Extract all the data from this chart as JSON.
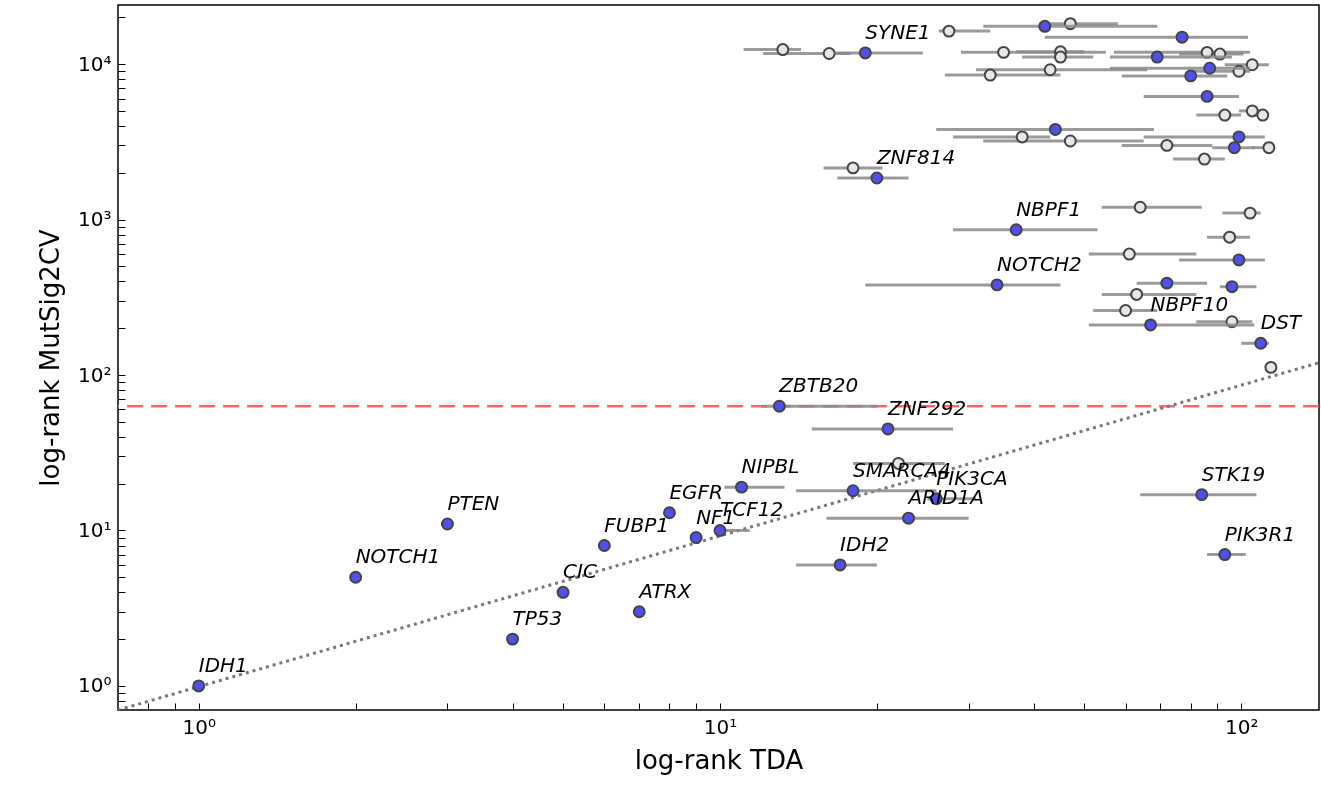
{
  "chart_data": {
    "type": "scatter",
    "xlabel": "log-rank TDA",
    "ylabel": "log-rank MutSig2CV",
    "log": "xy",
    "grid": false,
    "marker": "circle",
    "xlim": [
      0.7,
      141
    ],
    "ylim": [
      0.7,
      24000
    ],
    "xticks": [
      {
        "value": 0.8,
        "label": null
      },
      {
        "value": 0.9,
        "label": null
      },
      {
        "value": 1,
        "label": "10⁰"
      },
      {
        "value": 2,
        "label": null
      },
      {
        "value": 3,
        "label": null
      },
      {
        "value": 4,
        "label": null
      },
      {
        "value": 5,
        "label": null
      },
      {
        "value": 6,
        "label": null
      },
      {
        "value": 7,
        "label": null
      },
      {
        "value": 8,
        "label": null
      },
      {
        "value": 9,
        "label": null
      },
      {
        "value": 10,
        "label": "10¹"
      },
      {
        "value": 20,
        "label": null
      },
      {
        "value": 30,
        "label": null
      },
      {
        "value": 40,
        "label": null
      },
      {
        "value": 50,
        "label": null
      },
      {
        "value": 60,
        "label": null
      },
      {
        "value": 70,
        "label": null
      },
      {
        "value": 80,
        "label": null
      },
      {
        "value": 90,
        "label": null
      },
      {
        "value": 100,
        "label": "10²"
      }
    ],
    "yticks": [
      {
        "value": 0.8,
        "label": null
      },
      {
        "value": 0.9,
        "label": null
      },
      {
        "value": 1,
        "label": "10⁰"
      },
      {
        "value": 2,
        "label": null
      },
      {
        "value": 3,
        "label": null
      },
      {
        "value": 4,
        "label": null
      },
      {
        "value": 5,
        "label": null
      },
      {
        "value": 6,
        "label": null
      },
      {
        "value": 7,
        "label": null
      },
      {
        "value": 8,
        "label": null
      },
      {
        "value": 9,
        "label": null
      },
      {
        "value": 10,
        "label": "10¹"
      },
      {
        "value": 20,
        "label": null
      },
      {
        "value": 30,
        "label": null
      },
      {
        "value": 40,
        "label": null
      },
      {
        "value": 50,
        "label": null
      },
      {
        "value": 60,
        "label": null
      },
      {
        "value": 70,
        "label": null
      },
      {
        "value": 80,
        "label": null
      },
      {
        "value": 90,
        "label": null
      },
      {
        "value": 100,
        "label": "10²"
      },
      {
        "value": 200,
        "label": null
      },
      {
        "value": 300,
        "label": null
      },
      {
        "value": 400,
        "label": null
      },
      {
        "value": 500,
        "label": null
      },
      {
        "value": 600,
        "label": null
      },
      {
        "value": 700,
        "label": null
      },
      {
        "value": 800,
        "label": null
      },
      {
        "value": 900,
        "label": null
      },
      {
        "value": 1000,
        "label": "10³"
      },
      {
        "value": 2000,
        "label": null
      },
      {
        "value": 3000,
        "label": null
      },
      {
        "value": 4000,
        "label": null
      },
      {
        "value": 5000,
        "label": null
      },
      {
        "value": 6000,
        "label": null
      },
      {
        "value": 7000,
        "label": null
      },
      {
        "value": 8000,
        "label": null
      },
      {
        "value": 9000,
        "label": null
      },
      {
        "value": 10000,
        "label": "10⁴"
      },
      {
        "value": 20000,
        "label": null
      }
    ],
    "ref_lines": [
      {
        "axis": "y",
        "value": 63,
        "color": "#ff6666",
        "line_style": "dashed"
      }
    ],
    "series": [
      {
        "type": "line",
        "color": "#777777",
        "line_style": "dotted",
        "marker": "none",
        "x": [
          0.7,
          141
        ],
        "values": [
          0.7,
          120
        ]
      },
      {
        "type": "scatter",
        "color": "#e6e6e6",
        "x": [
          13.2,
          16.2,
          27.5,
          47,
          35,
          45,
          45,
          86,
          91,
          105,
          99,
          43,
          33,
          93,
          105,
          110,
          38,
          47,
          72,
          113,
          85,
          18,
          64,
          104,
          95,
          61,
          63,
          60,
          96,
          114,
          22
        ],
        "values": [
          12400,
          11700,
          16300,
          18200,
          11900,
          12000,
          11100,
          11900,
          11600,
          9900,
          9000,
          9200,
          8500,
          4700,
          5000,
          4700,
          3400,
          3200,
          3000,
          2900,
          2450,
          2150,
          1200,
          1100,
          770,
          600,
          330,
          260,
          220,
          112,
          27
        ],
        "xerrors": [
          [
            11.1,
            14.3
          ],
          [
            12.1,
            17.8
          ],
          [
            26.3,
            33
          ],
          [
            41,
            58
          ],
          [
            29,
            55
          ],
          [
            37,
            50
          ],
          [
            38,
            52
          ],
          [
            57,
            104
          ],
          [
            76,
            101
          ],
          [
            93,
            113
          ],
          [
            79,
            104
          ],
          [
            31,
            66
          ],
          [
            27,
            45
          ],
          [
            82,
            100
          ],
          [
            99,
            111
          ],
          [
            105,
            113
          ],
          [
            28,
            43
          ],
          [
            32,
            65
          ],
          [
            59,
            88
          ],
          [
            105,
            116
          ],
          [
            74,
            93
          ],
          [
            15.8,
            20.5
          ],
          [
            54,
            84
          ],
          [
            92,
            109
          ],
          [
            86,
            104
          ],
          [
            51,
            82
          ],
          [
            54,
            82
          ],
          [
            52,
            69
          ],
          [
            82,
            105
          ],
          null,
          [
            18,
            27
          ]
        ]
      },
      {
        "type": "scatter",
        "color": "#5050f0",
        "x": [
          19,
          42,
          77,
          69,
          87,
          80,
          86,
          44,
          99,
          97,
          20,
          37,
          99,
          34,
          72,
          96,
          67,
          109,
          13,
          21,
          18,
          26,
          23,
          84,
          93,
          17,
          11,
          10,
          9,
          8,
          6,
          7,
          5,
          4,
          3,
          2,
          1
        ],
        "values": [
          11800,
          17500,
          14900,
          11100,
          9400,
          8400,
          6200,
          3800,
          3400,
          2900,
          1850,
          860,
          550,
          380,
          390,
          370,
          210,
          160,
          63,
          45,
          18,
          16,
          12,
          17,
          7,
          6,
          19,
          10,
          9,
          13,
          8,
          3,
          4,
          2,
          11,
          5,
          1
        ],
        "xerrors": [
          [
            16.6,
            24.5
          ],
          [
            32,
            69
          ],
          [
            42,
            103
          ],
          [
            56,
            96
          ],
          [
            56,
            104
          ],
          [
            59,
            94
          ],
          [
            65,
            99
          ],
          [
            26,
            68
          ],
          [
            65,
            111
          ],
          [
            88,
            106
          ],
          [
            16.8,
            23
          ],
          [
            28,
            53
          ],
          [
            76,
            111
          ],
          [
            19,
            45
          ],
          [
            63,
            86
          ],
          [
            91,
            107
          ],
          [
            51,
            106
          ],
          [
            100,
            113
          ],
          [
            12,
            20
          ],
          [
            15,
            28
          ],
          [
            14,
            26
          ],
          [
            25,
            31
          ],
          [
            16,
            30
          ],
          [
            64,
            107
          ],
          [
            86,
            102
          ],
          [
            14,
            20
          ],
          [
            10.2,
            13.3
          ],
          [
            10,
            11.4
          ],
          null,
          null,
          null,
          null,
          null,
          null,
          null,
          null,
          null
        ]
      }
    ],
    "annotations": [
      {
        "text": "SYNE1",
        "x": 19,
        "y": 11800
      },
      {
        "text": "ZNF814",
        "x": 20,
        "y": 1850
      },
      {
        "text": "NBPF1",
        "x": 37,
        "y": 860
      },
      {
        "text": "NOTCH2",
        "x": 34,
        "y": 380
      },
      {
        "text": "NBPF10",
        "x": 67,
        "y": 210
      },
      {
        "text": "DST",
        "x": 109,
        "y": 160
      },
      {
        "text": "ZBTB20",
        "x": 13,
        "y": 63
      },
      {
        "text": "ZNF292",
        "x": 21,
        "y": 45
      },
      {
        "text": "SMARCA4",
        "x": 18,
        "y": 18
      },
      {
        "text": "PIK3CA",
        "x": 26,
        "y": 16
      },
      {
        "text": "ARID1A",
        "x": 23,
        "y": 12
      },
      {
        "text": "STK19",
        "x": 84,
        "y": 17
      },
      {
        "text": "PIK3R1",
        "x": 93,
        "y": 7
      },
      {
        "text": "IDH2",
        "x": 17,
        "y": 6
      },
      {
        "text": "NIPBL",
        "x": 11,
        "y": 19
      },
      {
        "text": "TCF12",
        "x": 10,
        "y": 10
      },
      {
        "text": "NF1",
        "x": 9,
        "y": 9
      },
      {
        "text": "EGFR",
        "x": 8,
        "y": 13
      },
      {
        "text": "FUBP1",
        "x": 6,
        "y": 8
      },
      {
        "text": "ATRX",
        "x": 7,
        "y": 3
      },
      {
        "text": "CIC",
        "x": 5,
        "y": 4
      },
      {
        "text": "TP53",
        "x": 4,
        "y": 2
      },
      {
        "text": "PTEN",
        "x": 3,
        "y": 11
      },
      {
        "text": "NOTCH1",
        "x": 2,
        "y": 5
      },
      {
        "text": "IDH1",
        "x": 1,
        "y": 1
      }
    ]
  }
}
